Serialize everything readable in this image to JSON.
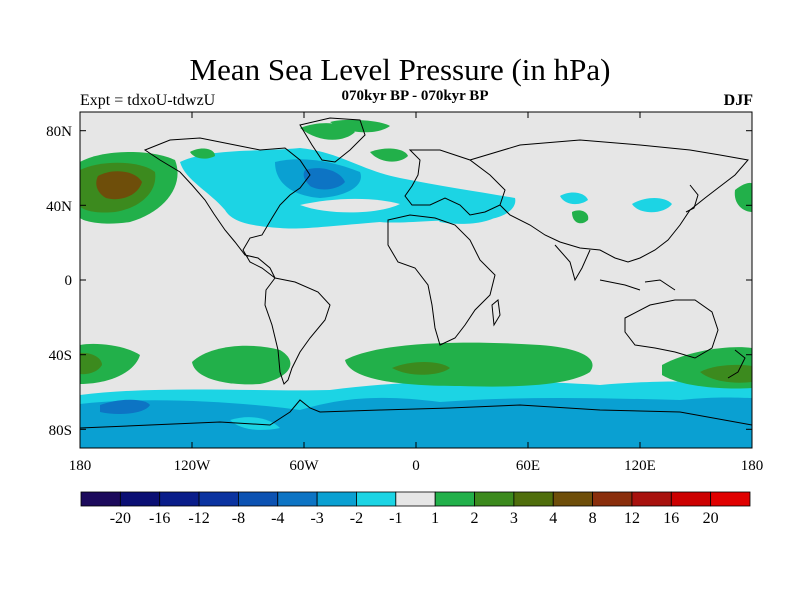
{
  "header": {
    "title": "Mean Sea Level Pressure (in hPa)",
    "subtitle": "070kyr BP - 070kyr BP",
    "experiment": "Expt = tdxoU-tdwzU",
    "season": "DJF"
  },
  "map": {
    "projection": "equirectangular",
    "lon_range": [
      -180,
      180
    ],
    "lat_range": [
      -90,
      90
    ],
    "lat_ticks": [
      "80N",
      "40N",
      "0",
      "40S",
      "80S"
    ],
    "lon_ticks": [
      "180",
      "120W",
      "60W",
      "0",
      "60E",
      "120E",
      "180"
    ],
    "background_color": "#e6e6e6",
    "coast_color": "#000000"
  },
  "colorbar": {
    "labels": [
      "-20",
      "-16",
      "-12",
      "-8",
      "-4",
      "-3",
      "-2",
      "-1",
      "1",
      "2",
      "3",
      "4",
      "8",
      "12",
      "16",
      "20"
    ],
    "colors": [
      "#1c0a5c",
      "#0b0f74",
      "#0a1d8a",
      "#0b33a0",
      "#0c52b2",
      "#0d74c4",
      "#0aa0d2",
      "#1cd4e4",
      "#e6e6e6",
      "#22b04a",
      "#3c8a1e",
      "#4f6e0c",
      "#6e4e0a",
      "#8a2e0c",
      "#a8120e",
      "#cc0000",
      "#e00000"
    ]
  },
  "fields": [
    {
      "id": "n-atlantic-low",
      "level": "-2",
      "color": "#1cd4e4"
    },
    {
      "id": "labrador-deep",
      "level": "-3",
      "color": "#0aa0d2"
    },
    {
      "id": "aleutian-high",
      "level": "3",
      "color": "#3c8a1e"
    },
    {
      "id": "southern-ocean-low",
      "level": "-3",
      "color": "#0aa0d2"
    },
    {
      "id": "subtropical-high-south",
      "level": "2",
      "color": "#22b04a"
    }
  ]
}
